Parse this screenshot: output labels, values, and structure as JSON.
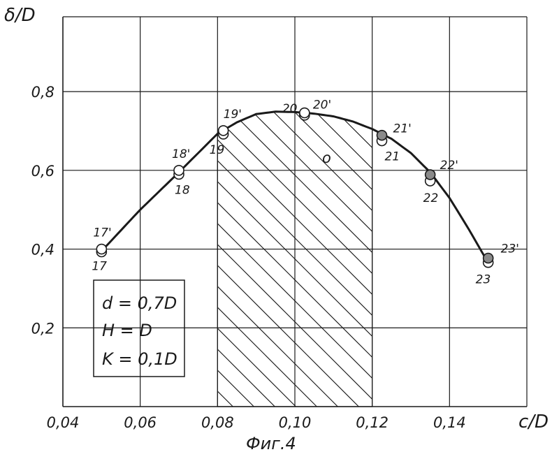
{
  "figure": {
    "caption": "Фиг.4"
  },
  "parameters": [
    "d = 0,7D",
    "H = D",
    "K = 0,1D"
  ],
  "chart_data": {
    "type": "line",
    "xlabel": "c/D",
    "ylabel": "δ/D",
    "xlim": [
      0.04,
      0.16
    ],
    "ylim": [
      0.0,
      0.99
    ],
    "x_ticks": [
      {
        "v": 0.04,
        "label": "0,04"
      },
      {
        "v": 0.06,
        "label": "0,06"
      },
      {
        "v": 0.08,
        "label": "0,08"
      },
      {
        "v": 0.1,
        "label": "0,10"
      },
      {
        "v": 0.12,
        "label": "0,12"
      },
      {
        "v": 0.14,
        "label": "0,14"
      }
    ],
    "y_ticks": [
      {
        "v": 0.2,
        "label": "0,2"
      },
      {
        "v": 0.4,
        "label": "0,4"
      },
      {
        "v": 0.6,
        "label": "0,6"
      },
      {
        "v": 0.8,
        "label": "0,8"
      }
    ],
    "x_grid": [
      0.06,
      0.08,
      0.1,
      0.12,
      0.14,
      0.16
    ],
    "y_grid": [
      0.2,
      0.4,
      0.6,
      0.8
    ],
    "grid": true,
    "curve": {
      "x": [
        0.05,
        0.06,
        0.07,
        0.08,
        0.085,
        0.09,
        0.095,
        0.1,
        0.105,
        0.11,
        0.115,
        0.12,
        0.125,
        0.13,
        0.135,
        0.14,
        0.145,
        0.15
      ],
      "y": [
        0.395,
        0.5,
        0.595,
        0.693,
        0.722,
        0.743,
        0.749,
        0.748,
        0.744,
        0.737,
        0.724,
        0.705,
        0.68,
        0.644,
        0.595,
        0.53,
        0.45,
        0.365
      ]
    },
    "points": [
      {
        "label": "17",
        "x": 0.05,
        "y": 0.393,
        "style": "open"
      },
      {
        "label": "17'",
        "x": 0.05,
        "y": 0.4,
        "style": "open"
      },
      {
        "label": "18",
        "x": 0.07,
        "y": 0.59,
        "style": "open"
      },
      {
        "label": "18'",
        "x": 0.07,
        "y": 0.6,
        "style": "open"
      },
      {
        "label": "19",
        "x": 0.0815,
        "y": 0.692,
        "style": "open"
      },
      {
        "label": "19'",
        "x": 0.0815,
        "y": 0.701,
        "style": "open"
      },
      {
        "label": "20",
        "x": 0.1025,
        "y": 0.74,
        "style": "open"
      },
      {
        "label": "20'",
        "x": 0.1025,
        "y": 0.746,
        "style": "open"
      },
      {
        "label": "21",
        "x": 0.1225,
        "y": 0.675,
        "style": "open"
      },
      {
        "label": "21'",
        "x": 0.1225,
        "y": 0.689,
        "style": "hatched"
      },
      {
        "label": "22",
        "x": 0.135,
        "y": 0.573,
        "style": "open"
      },
      {
        "label": "22'",
        "x": 0.135,
        "y": 0.589,
        "style": "hatched"
      },
      {
        "label": "23",
        "x": 0.15,
        "y": 0.366,
        "style": "open"
      },
      {
        "label": "23'",
        "x": 0.15,
        "y": 0.377,
        "style": "hatched"
      }
    ],
    "shaded_region": {
      "x_from": 0.08,
      "x_to": 0.12,
      "y_from": 0.0,
      "pattern": "diagonal-hatch"
    },
    "annotations": [
      "o"
    ]
  }
}
